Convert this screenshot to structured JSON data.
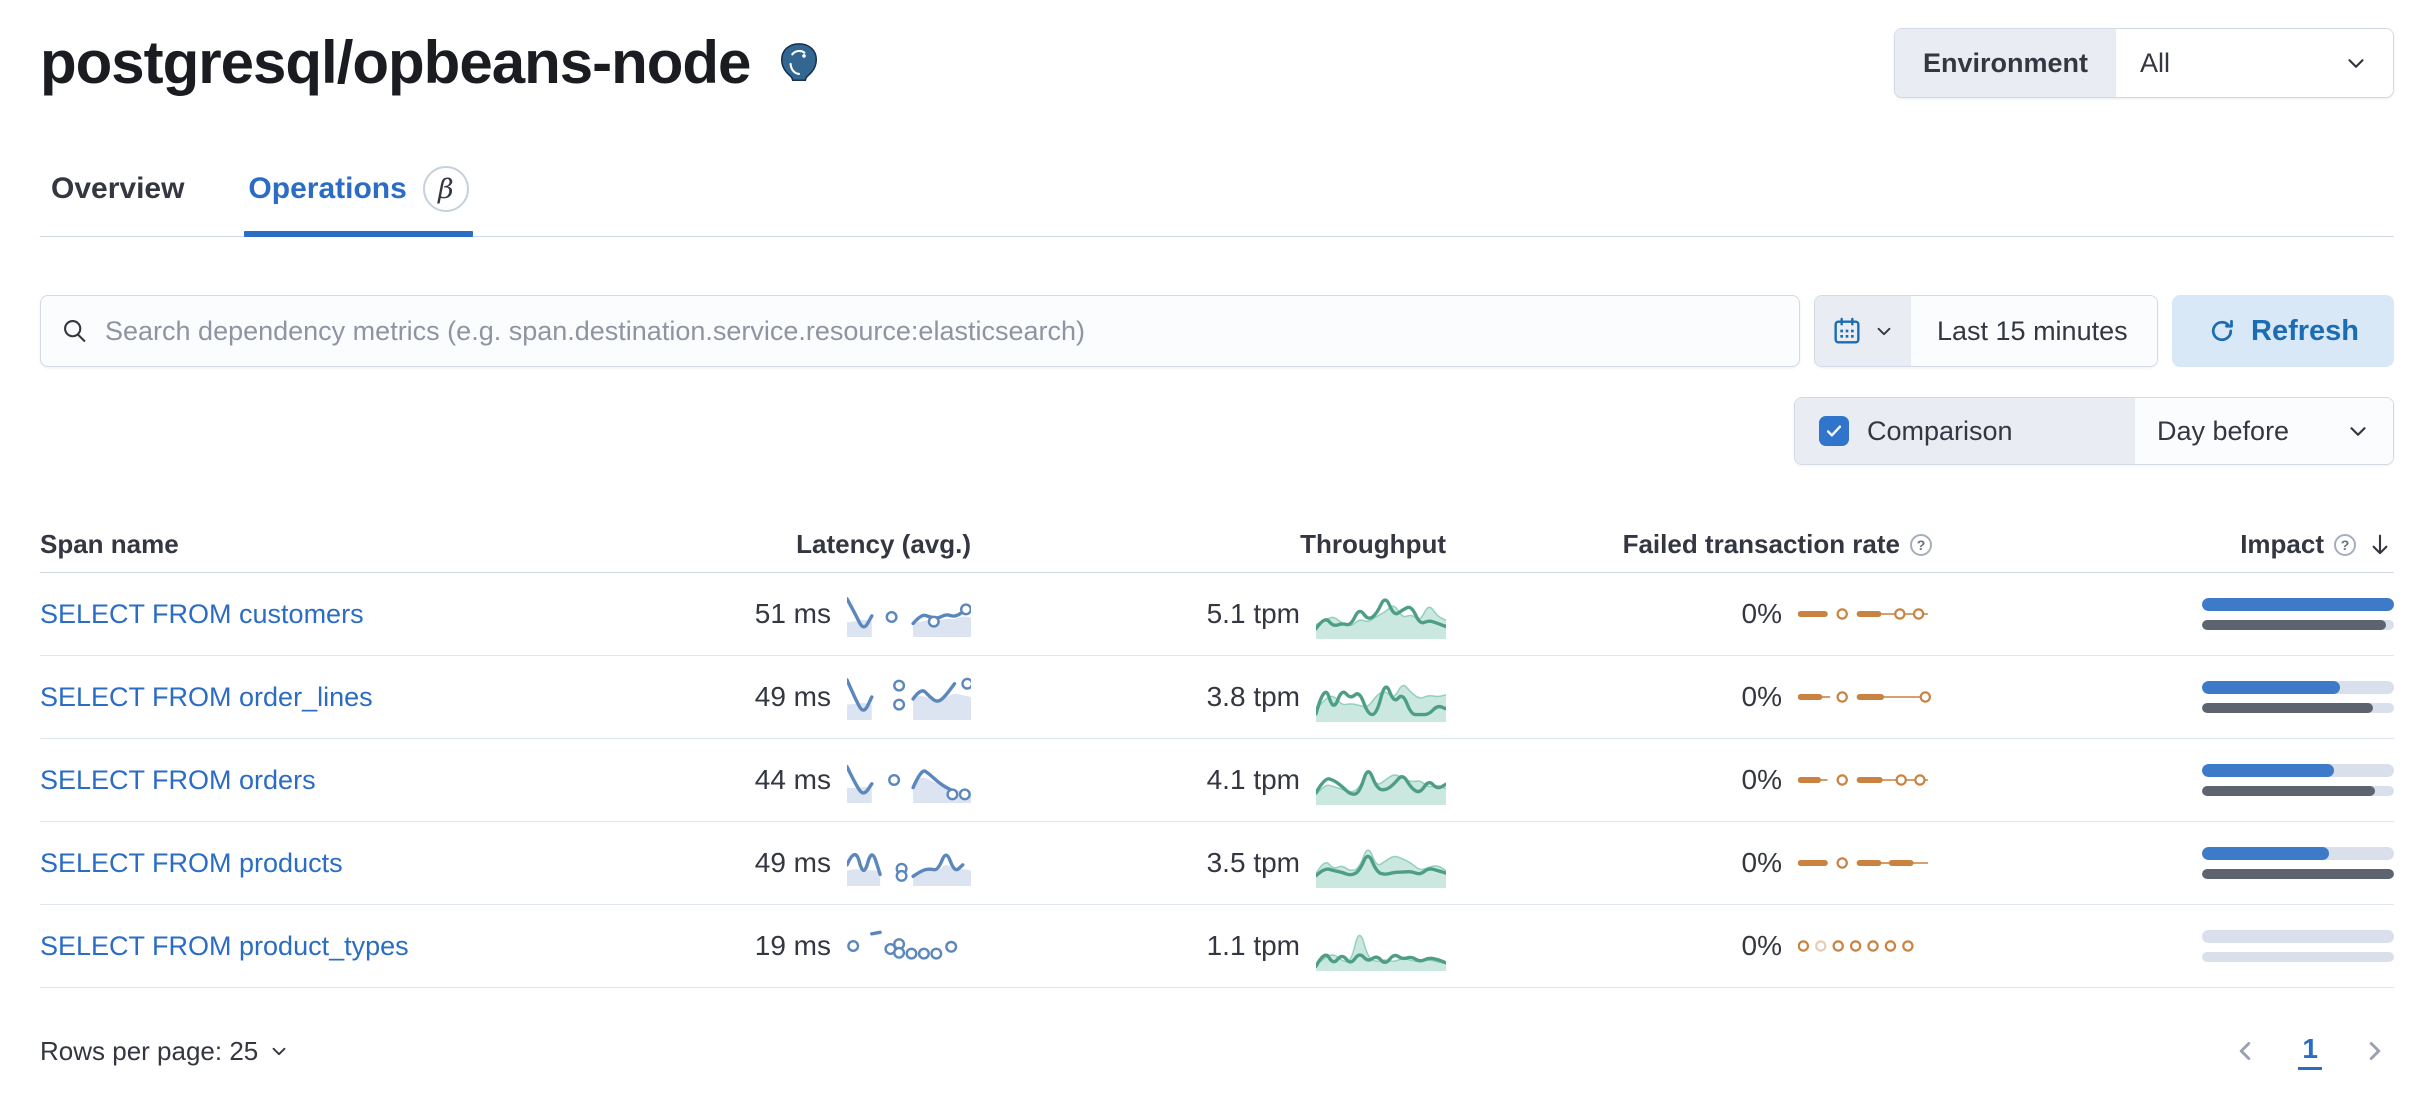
{
  "header": {
    "title": "postgresql/opbeans-node",
    "environment_label": "Environment",
    "environment_value": "All"
  },
  "tabs": {
    "overview": "Overview",
    "operations": "Operations",
    "beta": "β"
  },
  "toolbar": {
    "search_placeholder": "Search dependency metrics (e.g. span.destination.service.resource:elasticsearch)",
    "time_range": "Last 15 minutes",
    "refresh_label": "Refresh",
    "comparison_label": "Comparison",
    "comparison_checked": true,
    "comparison_value": "Day before"
  },
  "icons": {
    "question": "?"
  },
  "colors": {
    "primary": "#2b6cc4",
    "link": "#2b6cc4",
    "impact_current": "#3d7ac8",
    "impact_previous": "#5d6470",
    "impact_track": "#d9e0eb",
    "latency_spark": "#5b87bd",
    "throughput_spark": "#4e9e85",
    "failed_spark": "#c9823f",
    "refresh_bg": "#d9e8f6",
    "refresh_text": "#1c6cb4"
  },
  "table": {
    "headers": {
      "span_name": "Span name",
      "latency": "Latency (avg.)",
      "throughput": "Throughput",
      "failed_rate": "Failed transaction rate",
      "impact": "Impact"
    },
    "rows": [
      {
        "span_name": "SELECT FROM customers",
        "latency": "51 ms",
        "throughput": "5.1 tpm",
        "failed_rate": "0%",
        "impact_pct": 100,
        "impact_prev_pct": 96,
        "latency_spark": {
          "line": [
            0.9,
            0.5,
            0.06,
            0.45,
            null,
            null,
            null,
            null,
            0.25,
            0.5,
            0.42,
            0.38,
            0.5,
            0.42,
            0.55,
            null
          ],
          "area": [
            0.28,
            0.3,
            0.36,
            0.3,
            null,
            null,
            null,
            null,
            0.25,
            0.3,
            0.35,
            0.32,
            0.38,
            0.35,
            0.45,
            0.4
          ],
          "circles": [
            [
              0.36,
              0.42
            ],
            [
              0.7,
              0.3
            ],
            [
              0.96,
              0.62
            ]
          ]
        },
        "throughput_spark": {
          "current": [
            0.15,
            0.45,
            0.2,
            0.28,
            0.22,
            0.65,
            0.35,
            0.5,
            0.95,
            0.45,
            0.6,
            0.7,
            0.25,
            0.35,
            0.28,
            0.2
          ],
          "previous": [
            0.25,
            0.35,
            0.45,
            0.28,
            0.2,
            0.38,
            0.3,
            0.45,
            0.55,
            0.75,
            0.4,
            0.5,
            0.32,
            0.75,
            0.45,
            0.35
          ]
        },
        "failed_spark": [
          {
            "t": "dash",
            "a": 0.02,
            "b": 0.2
          },
          {
            "t": "dot",
            "x": 0.33
          },
          {
            "t": "dash",
            "a": 0.46,
            "b": 0.6
          },
          {
            "t": "line",
            "a": 0.6,
            "b": 0.97
          },
          {
            "t": "dot",
            "x": 0.76
          },
          {
            "t": "dot",
            "x": 0.9
          }
        ]
      },
      {
        "span_name": "SELECT FROM order_lines",
        "latency": "49 ms",
        "throughput": "3.8 tpm",
        "failed_rate": "0%",
        "impact_pct": 72,
        "impact_prev_pct": 89,
        "latency_spark": {
          "line": [
            0.95,
            0.45,
            0.05,
            0.5,
            null,
            null,
            null,
            null,
            0.45,
            0.75,
            0.5,
            0.35,
            0.55,
            0.85,
            null,
            null
          ],
          "area": [
            0.3,
            0.32,
            0.35,
            0.3,
            null,
            null,
            null,
            null,
            0.5,
            0.55,
            0.45,
            0.4,
            0.5,
            0.6,
            0.55,
            0.5
          ],
          "circles": [
            [
              0.42,
              0.8
            ],
            [
              0.42,
              0.3
            ],
            [
              0.97,
              0.85
            ]
          ]
        },
        "throughput_spark": {
          "current": [
            0.1,
            0.85,
            0.15,
            0.7,
            0.45,
            0.65,
            0.08,
            0.08,
            0.9,
            0.35,
            0.6,
            0.08,
            0.08,
            0.08,
            0.3,
            0.22
          ],
          "previous": [
            0.2,
            0.45,
            0.55,
            0.3,
            0.35,
            0.3,
            0.25,
            0.55,
            0.65,
            0.45,
            0.85,
            0.6,
            0.45,
            0.55,
            0.5,
            0.55
          ]
        },
        "failed_spark": [
          {
            "t": "dash",
            "a": 0.02,
            "b": 0.16
          },
          {
            "t": "line",
            "a": 0.16,
            "b": 0.24
          },
          {
            "t": "dot",
            "x": 0.33
          },
          {
            "t": "dash",
            "a": 0.46,
            "b": 0.62
          },
          {
            "t": "line",
            "a": 0.62,
            "b": 0.95
          },
          {
            "t": "dot",
            "x": 0.95
          }
        ]
      },
      {
        "span_name": "SELECT FROM orders",
        "latency": "44 ms",
        "throughput": "4.1 tpm",
        "failed_rate": "0%",
        "impact_pct": 69,
        "impact_prev_pct": 90,
        "latency_spark": {
          "line": [
            0.85,
            0.4,
            0.08,
            0.4,
            null,
            null,
            null,
            null,
            0.3,
            0.8,
            0.65,
            0.45,
            0.3,
            0.2,
            null,
            null
          ],
          "area": [
            0.3,
            0.28,
            0.33,
            0.3,
            null,
            null,
            null,
            null,
            0.45,
            0.6,
            0.5,
            0.4,
            0.3,
            0.25,
            0.2,
            0.2
          ],
          "circles": [
            [
              0.38,
              0.5
            ],
            [
              0.85,
              0.12
            ],
            [
              0.95,
              0.12
            ]
          ]
        },
        "throughput_spark": {
          "current": [
            0.2,
            0.55,
            0.5,
            0.35,
            0.15,
            0.18,
            0.85,
            0.3,
            0.25,
            0.4,
            0.65,
            0.3,
            0.18,
            0.5,
            0.28,
            0.4
          ],
          "previous": [
            0.15,
            0.4,
            0.35,
            0.28,
            0.2,
            0.3,
            0.78,
            0.35,
            0.5,
            0.65,
            0.55,
            0.45,
            0.5,
            0.32,
            0.38,
            0.3
          ]
        },
        "failed_spark": [
          {
            "t": "dash",
            "a": 0.02,
            "b": 0.15
          },
          {
            "t": "line",
            "a": 0.15,
            "b": 0.22
          },
          {
            "t": "dot",
            "x": 0.33
          },
          {
            "t": "dash",
            "a": 0.46,
            "b": 0.61
          },
          {
            "t": "line",
            "a": 0.61,
            "b": 0.97
          },
          {
            "t": "dot",
            "x": 0.77
          },
          {
            "t": "dot",
            "x": 0.91
          }
        ]
      },
      {
        "span_name": "SELECT FROM products",
        "latency": "49 ms",
        "throughput": "3.5 tpm",
        "failed_rate": "0%",
        "impact_pct": 66,
        "impact_prev_pct": 100,
        "latency_spark": {
          "line": [
            0.45,
            0.95,
            0.1,
            0.9,
            0.2,
            null,
            null,
            null,
            0.15,
            0.3,
            0.35,
            0.3,
            0.85,
            0.25,
            0.45,
            null
          ],
          "area": [
            0.3,
            0.35,
            0.3,
            0.32,
            0.28,
            null,
            null,
            null,
            0.2,
            0.25,
            0.3,
            0.28,
            0.5,
            0.3,
            0.35,
            0.3
          ],
          "circles": [
            [
              0.44,
              0.35
            ],
            [
              0.44,
              0.16
            ]
          ]
        },
        "throughput_spark": {
          "current": [
            0.2,
            0.38,
            0.32,
            0.28,
            0.2,
            0.3,
            0.78,
            0.28,
            0.22,
            0.28,
            0.28,
            0.3,
            0.22,
            0.38,
            0.32,
            0.26
          ],
          "previous": [
            0.25,
            0.6,
            0.35,
            0.45,
            0.3,
            0.38,
            0.95,
            0.4,
            0.55,
            0.68,
            0.6,
            0.5,
            0.32,
            0.4,
            0.45,
            0.32
          ]
        },
        "failed_spark": [
          {
            "t": "dash",
            "a": 0.02,
            "b": 0.2
          },
          {
            "t": "dot",
            "x": 0.33
          },
          {
            "t": "dash",
            "a": 0.46,
            "b": 0.6
          },
          {
            "t": "line",
            "a": 0.6,
            "b": 0.7
          },
          {
            "t": "dash",
            "a": 0.7,
            "b": 0.84
          },
          {
            "t": "line",
            "a": 0.84,
            "b": 0.97
          }
        ]
      },
      {
        "span_name": "SELECT FROM product_types",
        "latency": "19 ms",
        "throughput": "1.1 tpm",
        "failed_rate": "0%",
        "impact_pct": 0,
        "impact_prev_pct": 0,
        "latency_spark": {
          "line": [
            null,
            null,
            null,
            0.82,
            0.86,
            null,
            null,
            null,
            null,
            null,
            null,
            null,
            null,
            null,
            null,
            null
          ],
          "area": [],
          "circles": [
            [
              0.05,
              0.5
            ],
            [
              0.35,
              0.42
            ],
            [
              0.42,
              0.55
            ],
            [
              0.42,
              0.32
            ],
            [
              0.52,
              0.3
            ],
            [
              0.62,
              0.3
            ],
            [
              0.72,
              0.3
            ],
            [
              0.84,
              0.48
            ]
          ]
        },
        "throughput_spark": {
          "current": [
            0.02,
            0.4,
            0.05,
            0.32,
            0.05,
            0.35,
            0.12,
            0.28,
            0.05,
            0.32,
            0.18,
            0.25,
            0.12,
            0.22,
            0.18,
            0.1
          ],
          "previous": [
            0.05,
            0.22,
            0.32,
            0.15,
            0.1,
            0.95,
            0.22,
            0.12,
            0.18,
            0.12,
            0.22,
            0.15,
            0.12,
            0.18,
            0.12,
            0.08
          ]
        },
        "failed_spark": [
          {
            "t": "dot",
            "x": 0.04
          },
          {
            "t": "dot",
            "x": 0.17,
            "faint": true
          },
          {
            "t": "dot",
            "x": 0.3
          },
          {
            "t": "dot",
            "x": 0.43
          },
          {
            "t": "dot",
            "x": 0.56
          },
          {
            "t": "dot",
            "x": 0.69
          },
          {
            "t": "dot",
            "x": 0.82
          }
        ]
      }
    ]
  },
  "footer": {
    "rows_per_page": "Rows per page: 25",
    "page": "1"
  }
}
